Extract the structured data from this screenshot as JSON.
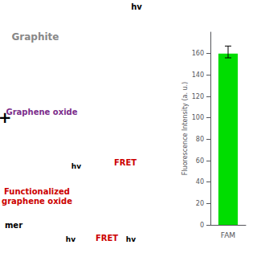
{
  "chart_data": {
    "type": "bar",
    "categories": [
      "FAM"
    ],
    "values": [
      160
    ],
    "color": "#00dd00",
    "error_minus": [
      4
    ],
    "error_plus": [
      7
    ],
    "ylabel": "Fluorescence Intensity (a. u.)",
    "ylim": [
      0,
      180
    ],
    "yticks": [
      0,
      20,
      40,
      60,
      80,
      100,
      120,
      140,
      160
    ],
    "grid": false,
    "annotations": [
      {
        "text": "Graphite",
        "color": "#888888"
      },
      {
        "text": "Graphene oxide",
        "color": "#7B2D8B"
      },
      {
        "text": "mer",
        "color": "#000000"
      },
      {
        "text": "Functionalized",
        "color": "#cc0000"
      },
      {
        "text": "graphene oxide",
        "color": "#cc0000"
      },
      {
        "text": "+",
        "color": "#000000"
      },
      {
        "text": "hv",
        "color": "#000000"
      },
      {
        "text": "FRET",
        "color": "#cc0000"
      },
      {
        "text": "hv",
        "color": "#000000"
      },
      {
        "text": "FRET",
        "color": "#cc0000"
      },
      {
        "text": "hv",
        "color": "#000000"
      },
      {
        "text": "hv",
        "color": "#000000"
      }
    ]
  }
}
